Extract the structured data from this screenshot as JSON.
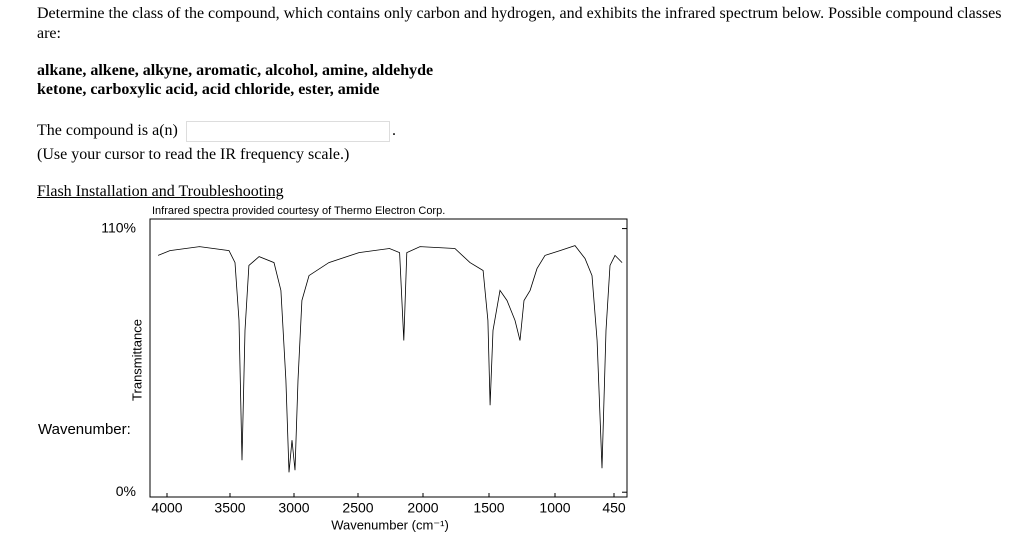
{
  "question": {
    "text": "Determine the class of the compound, which contains only carbon and hydrogen, and exhibits the infrared spectrum below. Possible compound classes are:",
    "classes_line1": "alkane, alkene, alkyne, aromatic, alcohol, amine, aldehyde",
    "classes_line2": "ketone, carboxylic acid, acid chloride, ester, amide"
  },
  "answer": {
    "prompt": "The compound is a(n)",
    "suffix": ".",
    "hint": "(Use your cursor to read the IR frequency scale.)"
  },
  "link": "Flash Installation and Troubleshooting",
  "chart_data": {
    "type": "line",
    "title": "Infrared spectra provided courtesy of Thermo Electron Corp.",
    "y_label": "Transmittance",
    "x_label": "Wavenumber (cm⁻¹)",
    "cursor_label": "Wavenumber:",
    "color": "#000000",
    "x": [
      4070,
      3977,
      3742,
      3508,
      3461,
      3430,
      3406,
      3383,
      3352,
      3273,
      3156,
      3102,
      3063,
      3039,
      3016,
      2992,
      2969,
      2938,
      2883,
      2727,
      2492,
      2258,
      2180,
      2148,
      2125,
      2023,
      1758,
      1644,
      1545,
      1508,
      1492,
      1470,
      1417,
      1364,
      1303,
      1265,
      1235,
      1189,
      1136,
      1076,
      953,
      814,
      720,
      655,
      608,
      562,
      525,
      487,
      441,
      375
    ],
    "values": [
      98.8,
      100.8,
      102.5,
      100.8,
      95.8,
      71.7,
      13.3,
      67.5,
      94.6,
      98.3,
      95.8,
      84.2,
      46.7,
      8.3,
      21.7,
      9.2,
      46.7,
      80.0,
      90.4,
      95.8,
      100.0,
      101.7,
      100.0,
      63.3,
      100.0,
      102.5,
      101.7,
      95.8,
      92.5,
      71.7,
      36.3,
      67.5,
      84.2,
      80.0,
      71.7,
      63.3,
      80.0,
      84.2,
      93.3,
      98.8,
      100.8,
      102.9,
      97.5,
      90.4,
      63.3,
      10.0,
      67.5,
      94.6,
      98.8,
      95.8
    ],
    "xlim": [
      4133,
      330
    ],
    "ylim": [
      -2,
      114
    ],
    "xticks": [
      4000,
      3500,
      3000,
      2500,
      2000,
      1500,
      1000,
      450
    ],
    "yticks": [
      {
        "value": 110,
        "label": "110%"
      },
      {
        "value": 0,
        "label": "0%"
      }
    ]
  }
}
